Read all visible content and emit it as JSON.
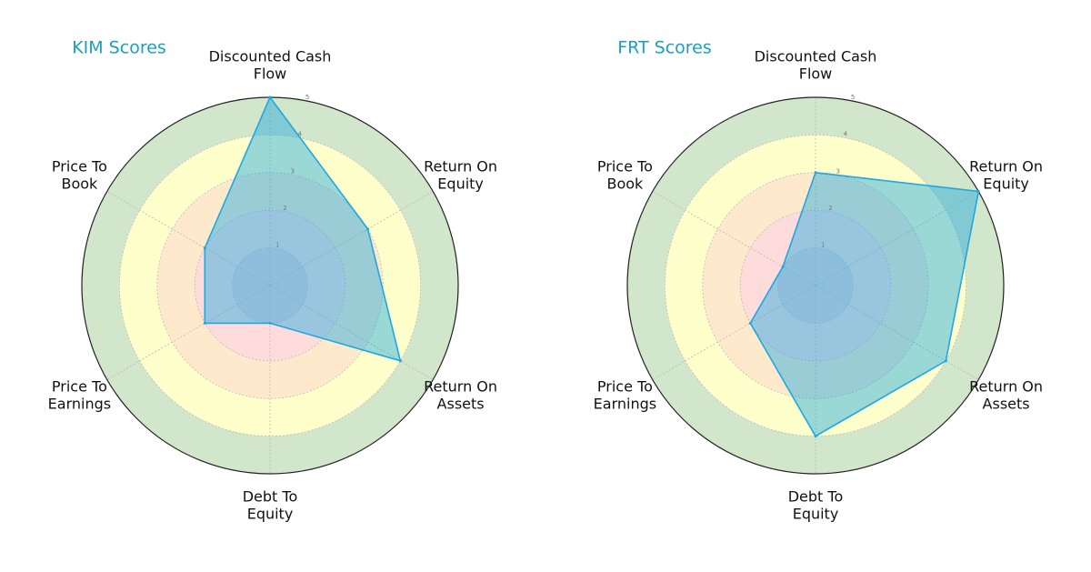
{
  "chart_data": [
    {
      "type": "radar",
      "title": "KIM Scores",
      "categories": [
        "Discounted Cash\nFlow",
        "Return On\nEquity",
        "Return On\nAssets",
        "Debt To\nEquity",
        "Price To\nEarnings",
        "Price To\nBook"
      ],
      "values": [
        5,
        3,
        4,
        1,
        2,
        2
      ],
      "color": "#1ea8e0",
      "ylim": [
        0,
        5
      ],
      "yticks": [
        1,
        2,
        3,
        4,
        5
      ]
    },
    {
      "type": "radar",
      "title": "FRT Scores",
      "categories": [
        "Discounted Cash\nFlow",
        "Return On\nEquity",
        "Return On\nAssets",
        "Debt To\nEquity",
        "Price To\nEarnings",
        "Price To\nBook"
      ],
      "values": [
        3,
        5,
        4,
        4,
        2,
        1
      ],
      "color": "#1ea8e0",
      "ylim": [
        0,
        5
      ],
      "yticks": [
        1,
        2,
        3,
        4,
        5
      ]
    }
  ]
}
